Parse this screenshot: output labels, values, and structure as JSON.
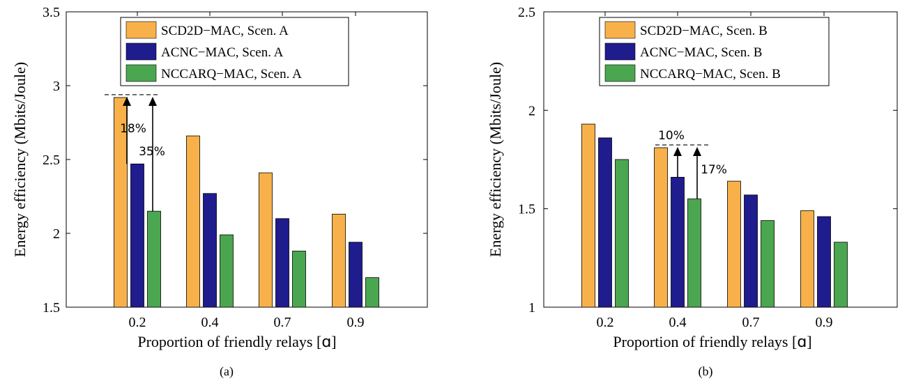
{
  "chart_data": [
    {
      "type": "bar",
      "caption": "(a)",
      "categories": [
        "0.2",
        "0.4",
        "0.7",
        "0.9"
      ],
      "series": [
        {
          "name": "SCD2D−MAC, Scen. A",
          "values": [
            2.92,
            2.66,
            2.41,
            2.13
          ]
        },
        {
          "name": "ACNC−MAC, Scen. A",
          "values": [
            2.47,
            2.27,
            2.1,
            1.94
          ]
        },
        {
          "name": "NCCARQ−MAC, Scen. A",
          "values": [
            2.15,
            1.99,
            1.88,
            1.7
          ]
        }
      ],
      "xlabel": "Proportion of friendly relays [",
      "xlabel_symbol": "ɑ",
      "xlabel_close": "]",
      "ylabel": "Energy efficiency (Mbits/Joule)",
      "ylim": [
        1.5,
        3.5
      ],
      "yticks": [
        "1.5",
        "2",
        "2.5",
        "3",
        "3.5"
      ],
      "grid": false,
      "legend_position": "top-center",
      "annotations": [
        {
          "text": "18%",
          "target_series": 1,
          "category": 0
        },
        {
          "text": "35%",
          "target_series": 2,
          "category": 0
        }
      ]
    },
    {
      "type": "bar",
      "caption": "(b)",
      "categories": [
        "0.2",
        "0.4",
        "0.7",
        "0.9"
      ],
      "series": [
        {
          "name": "SCD2D−MAC, Scen. B",
          "values": [
            1.93,
            1.81,
            1.64,
            1.49
          ]
        },
        {
          "name": "ACNC−MAC, Scen. B",
          "values": [
            1.86,
            1.66,
            1.57,
            1.46
          ]
        },
        {
          "name": "NCCARQ−MAC, Scen. B",
          "values": [
            1.75,
            1.55,
            1.44,
            1.33
          ]
        }
      ],
      "xlabel": "Proportion of friendly relays [",
      "xlabel_symbol": "ɑ",
      "xlabel_close": "]",
      "ylabel": "Energy efficiency (Mbits/Joule)",
      "ylim": [
        1,
        2.5
      ],
      "yticks": [
        "1",
        "1.5",
        "2",
        "2.5"
      ],
      "grid": false,
      "legend_position": "top-center",
      "annotations": [
        {
          "text": "10%",
          "target_series": 1,
          "category": 1
        },
        {
          "text": "17%",
          "target_series": 2,
          "category": 1
        }
      ]
    }
  ],
  "colors": {
    "series": [
      "#F8B14A",
      "#1F1C8E",
      "#4BA650"
    ],
    "stroke": "#000000"
  }
}
